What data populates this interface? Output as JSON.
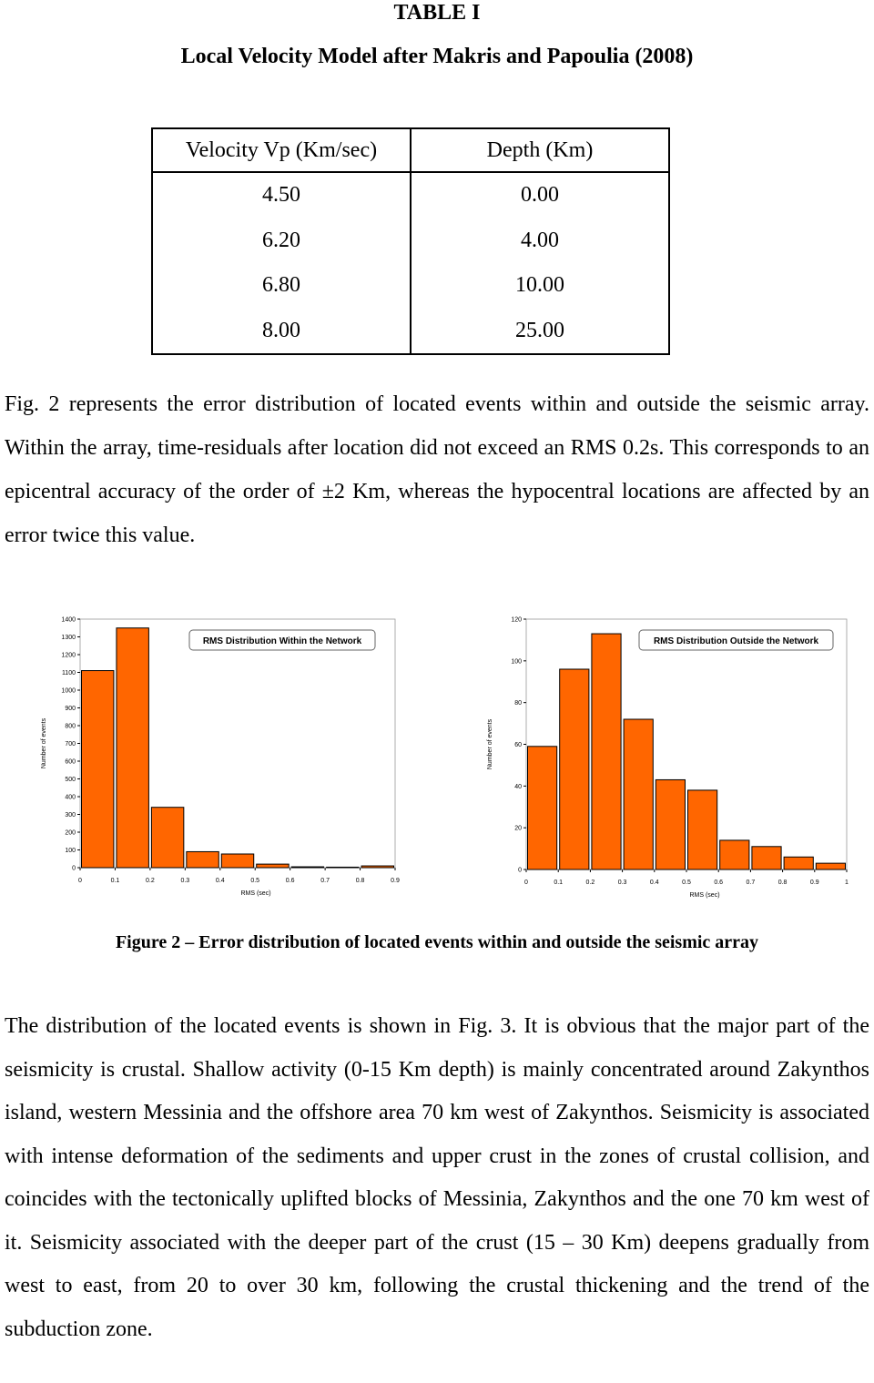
{
  "header": {
    "title": "TABLE I",
    "subtitle": "Local Velocity Model  after Makris and Papoulia (2008)"
  },
  "table": {
    "columns": [
      "Velocity Vp (Km/sec)",
      "Depth (Km)"
    ],
    "rows": [
      [
        "4.50",
        "0.00"
      ],
      [
        "6.20",
        "4.00"
      ],
      [
        "6.80",
        "10.00"
      ],
      [
        "8.00",
        "25.00"
      ]
    ]
  },
  "paragraphs": [
    "Fig. 2 represents the error distribution of located events within and outside the seismic array. Within the array, time-residuals after location did not exceed an RMS 0.2s. This corresponds to an epicentral accuracy of the order of ±2 Km, whereas the hypocentral locations are affected by an error twice this value.",
    "The distribution of the located events is shown in Fig. 3. It is obvious that the major part of the seismicity is crustal. Shallow activity (0-15 Km depth) is mainly concentrated around Zakynthos island, western Messinia and the offshore area 70 km west of Zakynthos. Seismicity is associated with intense deformation of the sediments and upper crust in the zones of crustal collision, and coincides with the tectonically uplifted blocks of Messinia, Zakynthos and the one 70 km west of it. Seismicity associated with the deeper part of the crust (15 – 30 Km) deepens gradually from west to east, from 20 to over 30 km, following the crustal thickening and the trend of the subduction zone."
  ],
  "caption": "Figure 2 – Error distribution of  located events within and outside the seismic array",
  "chart_data": [
    {
      "type": "histogram",
      "title": "RMS Distribution Within the Network",
      "x_label": "RMS (sec)",
      "y_label": "Number of events",
      "color": "#ff6600",
      "bins": [
        0,
        0.1,
        0.2,
        0.3,
        0.4,
        0.5,
        0.6,
        0.7,
        0.8,
        0.9
      ],
      "values": [
        1110,
        1350,
        340,
        90,
        77,
        20,
        5,
        3,
        10
      ],
      "xlim": [
        0,
        0.9
      ],
      "xticks": [
        0,
        0.1,
        0.2,
        0.3,
        0.4,
        0.5,
        0.6,
        0.7,
        0.8,
        0.9
      ],
      "ylim": [
        0,
        1400
      ],
      "yticks": [
        0,
        100,
        200,
        300,
        400,
        500,
        600,
        700,
        800,
        900,
        1000,
        1100,
        1200,
        1300,
        1400
      ]
    },
    {
      "type": "histogram",
      "title": "RMS Distribution Outside the Network",
      "x_label": "RMS (sec)",
      "y_label": "Number of events",
      "color": "#ff6600",
      "bins": [
        0,
        0.1,
        0.2,
        0.3,
        0.4,
        0.5,
        0.6,
        0.7,
        0.8,
        0.9,
        1
      ],
      "values": [
        59,
        96,
        113,
        72,
        43,
        38,
        14,
        11,
        6,
        3
      ],
      "xlim": [
        0,
        1
      ],
      "xticks": [
        0,
        0.1,
        0.2,
        0.3,
        0.4,
        0.5,
        0.6,
        0.7,
        0.8,
        0.9,
        1
      ],
      "ylim": [
        0,
        120
      ],
      "yticks": [
        0,
        20,
        40,
        60,
        80,
        100,
        120
      ]
    }
  ]
}
